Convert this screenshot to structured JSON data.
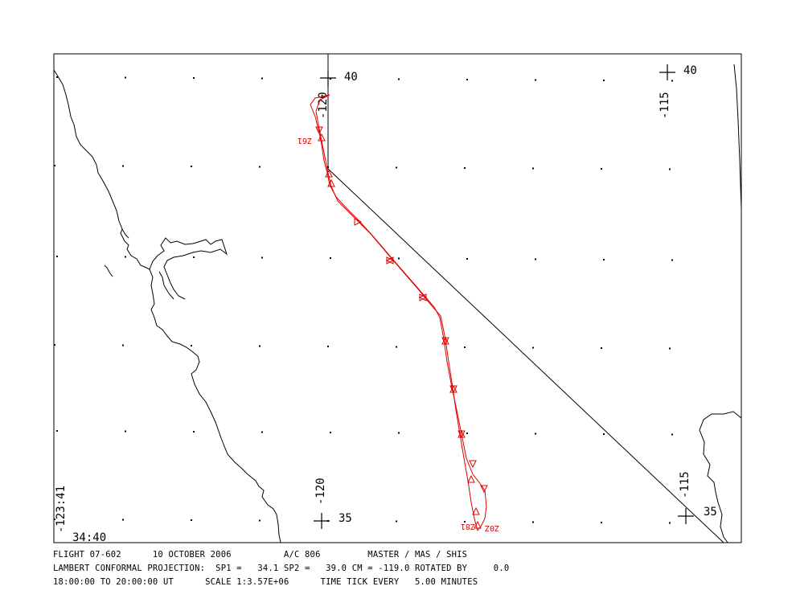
{
  "map": {
    "projection_marks": {
      "nw_lat": "40",
      "nw_lon": "-120",
      "ne_lat": "40",
      "ne_lon": "-115",
      "sw_lat": "35",
      "sw_lon": "-120",
      "se_lat": "35",
      "se_lon": "-115"
    },
    "corner_labels": {
      "lon": "-123:41",
      "lat": "34:40"
    },
    "time_labels": [
      {
        "text": "Z61",
        "rotated": true
      },
      {
        "text": "Z81",
        "rotated": true
      },
      {
        "text": "Z0Z",
        "rotated": true
      }
    ],
    "colors": {
      "track": "#e00000",
      "coast": "#000000",
      "frame": "#000000"
    }
  },
  "footer": {
    "line1": "FLIGHT 07-602      10 OCTOBER 2006          A/C 806         MASTER / MAS / SHIS",
    "line2": "LAMBERT CONFORMAL PROJECTION:  SP1 =   34.1 SP2 =   39.0 CM = -119.0 ROTATED BY     0.0",
    "line3": "18:00:00 TO 20:00:00 UT      SCALE 1:3.57E+06      TIME TICK EVERY   5.00 MINUTES"
  }
}
